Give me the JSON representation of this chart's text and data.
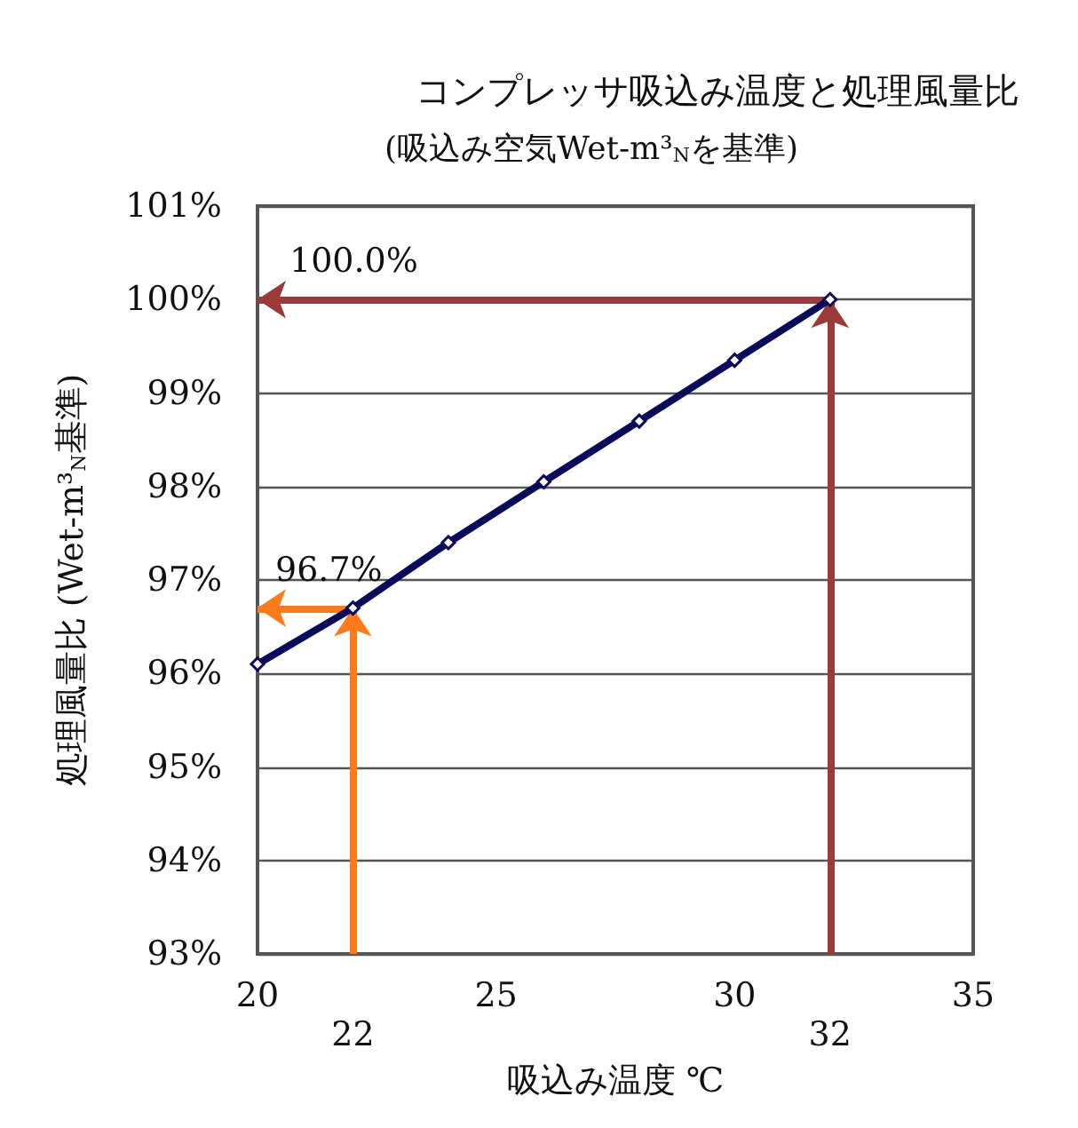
{
  "chart_data": {
    "type": "line",
    "title": "コンプレッサ吸込み温度と処理風量比",
    "subtitle": "(吸込み空気Wet-m³$_{N}$を基準)",
    "xlabel": "吸込み温度 ℃",
    "ylabel": "処理風量比 (Wet-m³$_{N}$基準)",
    "x": [
      20,
      22,
      24,
      26,
      28,
      30,
      32
    ],
    "series": [
      {
        "color": "#0a0a5a",
        "values": [
          96.1,
          96.7,
          97.4,
          98.05,
          98.7,
          99.35,
          100.0
        ]
      }
    ],
    "xlim": [
      20,
      35
    ],
    "xticks": [
      20,
      25,
      30,
      35
    ],
    "ylim": [
      93,
      101
    ],
    "yticks": [
      {
        "value": 93,
        "label": "93%"
      },
      {
        "value": 94,
        "label": "94%"
      },
      {
        "value": 95,
        "label": "95%"
      },
      {
        "value": 96,
        "label": "96%"
      },
      {
        "value": 97,
        "label": "97%"
      },
      {
        "value": 98,
        "label": "98%"
      },
      {
        "value": 99,
        "label": "99%"
      },
      {
        "value": 100,
        "label": "100%"
      },
      {
        "value": 101,
        "label": "101%"
      }
    ],
    "grid": "y",
    "marker": "diamond",
    "line_style": "solid",
    "ref_lines": [
      {
        "axis": "y",
        "value": 96.7,
        "label": "96.7%",
        "color": "#ff7a1a"
      },
      {
        "axis": "x",
        "value": 22,
        "label": "22",
        "color": "#ff7a1a"
      },
      {
        "axis": "y",
        "value": 100,
        "label": "100.0%",
        "color": "#9a3a3a"
      },
      {
        "axis": "x",
        "value": 32,
        "label": "32",
        "color": "#9a3a3a"
      }
    ]
  }
}
